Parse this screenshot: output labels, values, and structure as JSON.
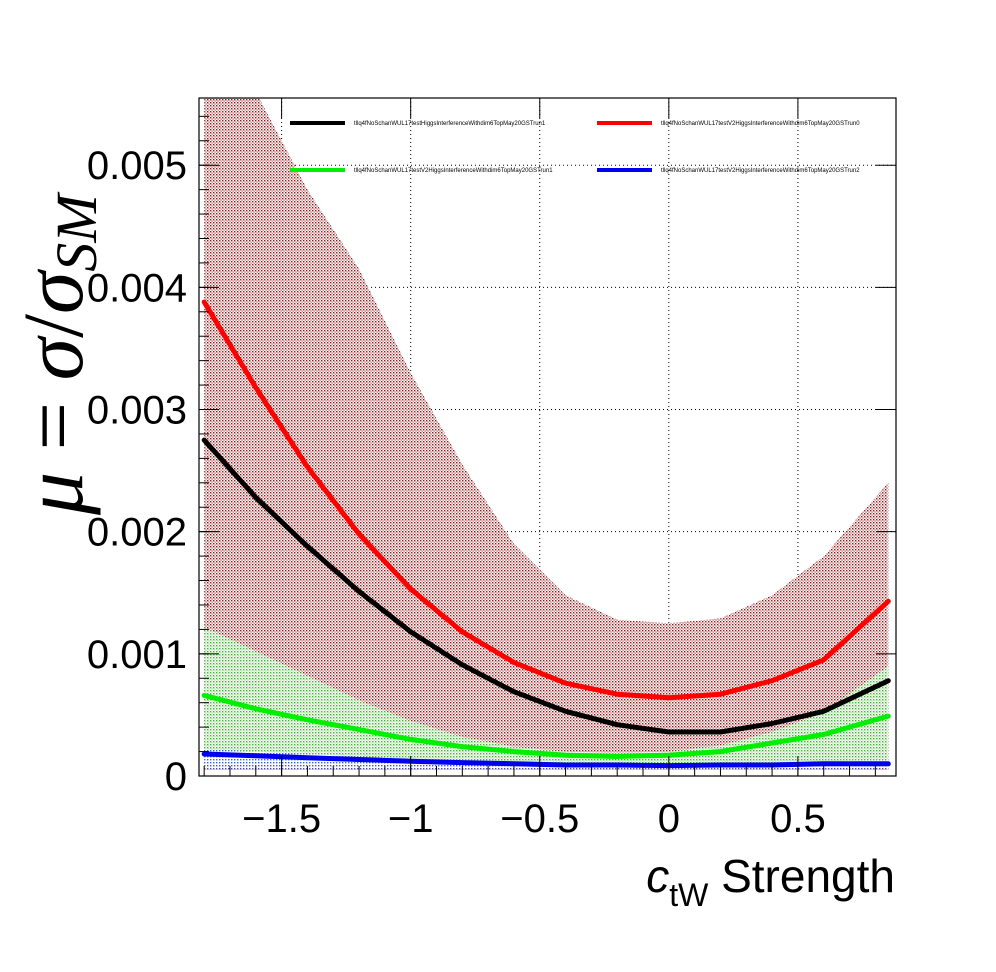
{
  "chart_data": {
    "type": "line",
    "title": "",
    "xlabel": {
      "main": "c",
      "sub": "tW",
      "rest": " Strength"
    },
    "ylabel": {
      "mu": "μ",
      "eq": " = ",
      "sigma1": "σ",
      "slash": "/",
      "sigma2": "σ",
      "sub": "SM"
    },
    "xlim": [
      -1.82,
      0.88
    ],
    "ylim": [
      0,
      0.00555
    ],
    "grid": true,
    "legend_position": "top",
    "x_ticks": [
      {
        "value": -1.5,
        "label": "−1.5"
      },
      {
        "value": -1.0,
        "label": "−1"
      },
      {
        "value": -0.5,
        "label": "−0.5"
      },
      {
        "value": 0.0,
        "label": "0"
      },
      {
        "value": 0.5,
        "label": "0.5"
      }
    ],
    "y_ticks": [
      {
        "value": 0,
        "label": "0"
      },
      {
        "value": 0.001,
        "label": "0.001"
      },
      {
        "value": 0.002,
        "label": "0.002"
      },
      {
        "value": 0.003,
        "label": "0.003"
      },
      {
        "value": 0.004,
        "label": "0.004"
      },
      {
        "value": 0.005,
        "label": "0.005"
      }
    ],
    "x": [
      -1.8,
      -1.6,
      -1.4,
      -1.2,
      -1.0,
      -0.8,
      -0.6,
      -0.4,
      -0.2,
      0.0,
      0.2,
      0.4,
      0.6,
      0.85
    ],
    "series": [
      {
        "name": "tllq4fNoSchanWUL17testHiggsInterferenceWithdim6TopMay20GSTrun1",
        "color": "#000000",
        "band_color": "#8a0000",
        "values": [
          0.00275,
          0.00228,
          0.00188,
          0.00151,
          0.00118,
          0.00091,
          0.00069,
          0.00053,
          0.00042,
          0.00036,
          0.00036,
          0.00043,
          0.00053,
          0.00078
        ],
        "band_low": [
          5e-05,
          5e-05,
          5e-05,
          5e-05,
          5e-05,
          5e-05,
          5e-05,
          5e-05,
          5e-05,
          5e-05,
          5e-05,
          5e-05,
          5e-05,
          5e-05
        ],
        "band_high": [
          0.0056,
          0.0056,
          0.0048,
          0.00415,
          0.0033,
          0.00255,
          0.0019,
          0.00148,
          0.00128,
          0.00125,
          0.00129,
          0.00148,
          0.0018,
          0.0024
        ]
      },
      {
        "name": "tllq4fNoSchanWUL17testV2HiggsInterferenceWithdim6TopMay20GSTrun0",
        "color": "#ff0000",
        "values": [
          0.00388,
          0.00318,
          0.00253,
          0.00198,
          0.00153,
          0.00118,
          0.00093,
          0.00076,
          0.00067,
          0.00064,
          0.00067,
          0.00078,
          0.00095,
          0.00143
        ]
      },
      {
        "name": "tllq4fNoSchanWUL17testV2HiggsInterferenceWithdim6TopMay20GSTrun1",
        "color": "#00ee00",
        "band_color": "#33cc33",
        "values": [
          0.00066,
          0.00055,
          0.00046,
          0.00038,
          0.0003,
          0.00024,
          0.0002,
          0.00017,
          0.00016,
          0.00017,
          0.0002,
          0.00027,
          0.00034,
          0.00049
        ],
        "band_low": [
          0.0001,
          0.0001,
          0.0001,
          0.0001,
          0.0001,
          0.0001,
          0.0001,
          0.0001,
          0.0001,
          0.0001,
          0.0001,
          0.0001,
          0.0001,
          0.0001
        ],
        "band_high": [
          0.00122,
          0.00102,
          0.00082,
          0.00062,
          0.00045,
          0.00032,
          0.00024,
          0.0002,
          0.00019,
          0.0002,
          0.00025,
          0.00036,
          0.00052,
          0.0009
        ]
      },
      {
        "name": "tllq4fNoSchanWUL17testV2HiggsInterferenceWithdim6TopMay20GSTrun2",
        "color": "#0000ee",
        "band_color": "#3355ff",
        "values": [
          0.00018,
          0.000165,
          0.00015,
          0.000135,
          0.00012,
          0.00011,
          0.0001,
          9e-05,
          9e-05,
          8.5e-05,
          9e-05,
          9e-05,
          0.0001,
          0.0001
        ],
        "band_low": [
          6e-05,
          6e-05,
          6e-05,
          6e-05,
          6e-05,
          6e-05,
          6e-05,
          6e-05,
          6e-05,
          6e-05,
          6e-05,
          6e-05,
          6e-05,
          6e-05
        ],
        "band_high": [
          0.00022,
          0.0002,
          0.00018,
          0.00016,
          0.00014,
          0.00012,
          0.00011,
          0.0001,
          0.0001,
          0.0001,
          0.0001,
          0.00011,
          0.00012,
          0.00013
        ]
      }
    ]
  }
}
